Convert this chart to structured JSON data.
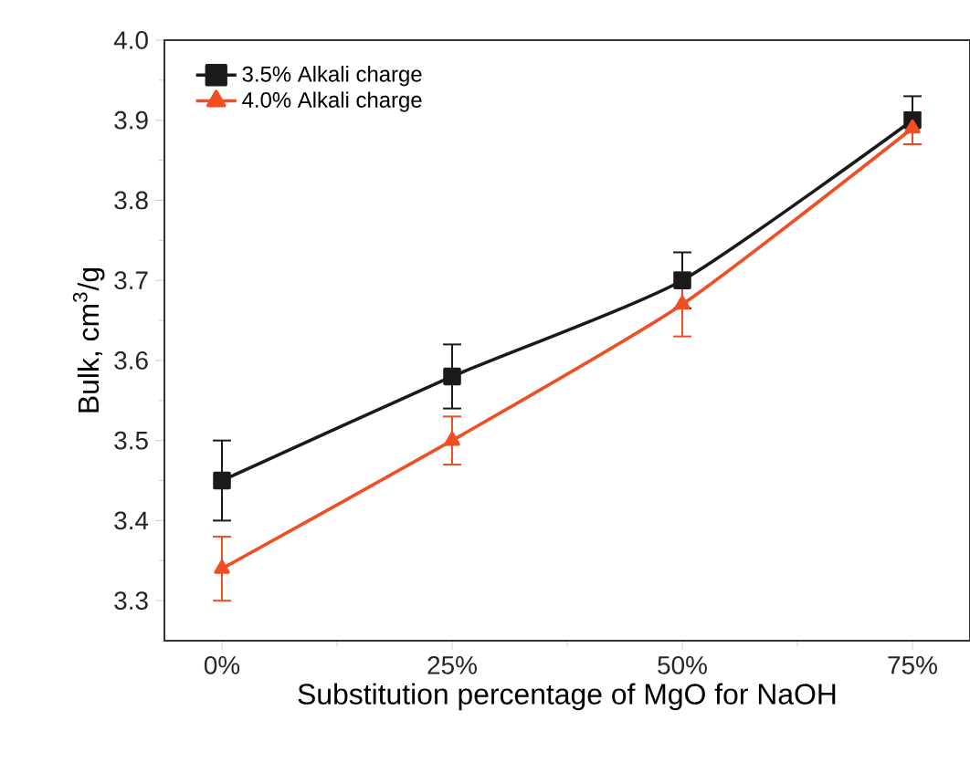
{
  "chart_data": {
    "type": "line",
    "xlabel": "Substitution percentage of MgO for NaOH",
    "ylabel": "Bulk, cm$^{3}$/g",
    "categories": [
      "0%",
      "25%",
      "50%",
      "75%"
    ],
    "series": [
      {
        "name": "3.5% Alkali charge",
        "color": "#1a1a1a",
        "marker": "square",
        "values": [
          3.45,
          3.58,
          3.7,
          3.9
        ],
        "errors": [
          0.05,
          0.04,
          0.035,
          0.03
        ]
      },
      {
        "name": "4.0% Alkali charge",
        "color": "#f04e23",
        "marker": "triangle",
        "values": [
          3.34,
          3.5,
          3.67,
          3.89
        ],
        "errors": [
          0.04,
          0.03,
          0.04,
          0.02
        ]
      }
    ],
    "ylim": [
      3.25,
      4.0
    ],
    "yticks": [
      {
        "value": 3.3,
        "label": "3.3"
      },
      {
        "value": 3.4,
        "label": "3.4"
      },
      {
        "value": 3.5,
        "label": "3.5"
      },
      {
        "value": 3.6,
        "label": "3.6"
      },
      {
        "value": 3.7,
        "label": "3.7"
      },
      {
        "value": 3.8,
        "label": "3.8"
      },
      {
        "value": 3.9,
        "label": "3.9"
      },
      {
        "value": 4.0,
        "label": "4.0"
      }
    ],
    "legend": "top left",
    "grid": false,
    "line_style": "solid"
  }
}
